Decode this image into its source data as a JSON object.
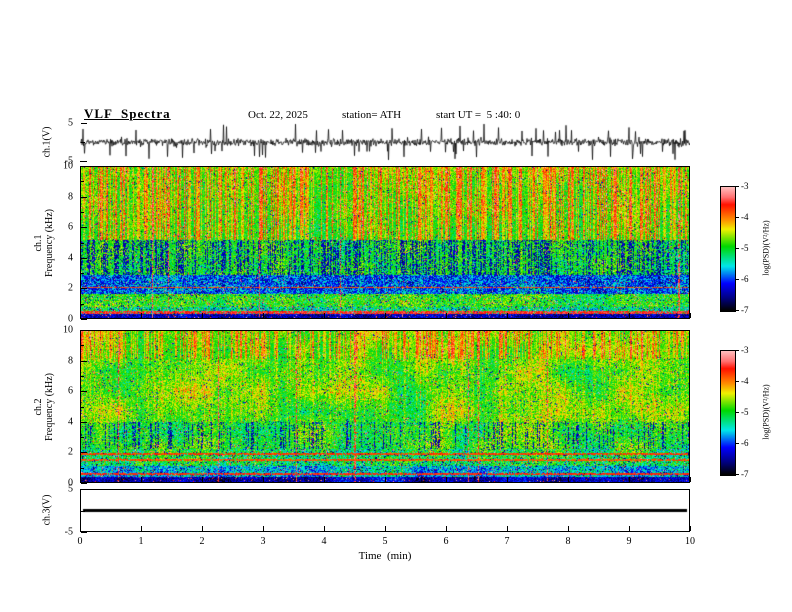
{
  "title": "VLF  Spectra",
  "header": {
    "date": "Oct. 22, 2025",
    "station": "station= ATH",
    "start_ut": "start UT =  5 :40: 0"
  },
  "axes": {
    "time": {
      "title": "Time  (min)",
      "min": 0,
      "max": 10,
      "ticks": [
        {
          "v": 0,
          "t": "0"
        },
        {
          "v": 1,
          "t": "1"
        },
        {
          "v": 2,
          "t": "2"
        },
        {
          "v": 3,
          "t": "3"
        },
        {
          "v": 4,
          "t": "4"
        },
        {
          "v": 5,
          "t": "5"
        },
        {
          "v": 6,
          "t": "6"
        },
        {
          "v": 7,
          "t": "7"
        },
        {
          "v": 8,
          "t": "8"
        },
        {
          "v": 9,
          "t": "9"
        },
        {
          "v": 10,
          "t": "10"
        }
      ]
    },
    "ch1_voltage": {
      "label_lines": [
        "ch.1(V)"
      ],
      "min": -5,
      "max": 5,
      "ticks": [
        {
          "v": 5,
          "t": "5"
        },
        {
          "v": -5,
          "t": "-5"
        }
      ]
    },
    "ch1_freq": {
      "label_lines": [
        "ch.1",
        "Frequency  (kHz)"
      ],
      "min": 0,
      "max": 10,
      "ticks": [
        {
          "v": 10,
          "t": "10"
        },
        {
          "v": 8,
          "t": "8"
        },
        {
          "v": 6,
          "t": "6"
        },
        {
          "v": 4,
          "t": "4"
        },
        {
          "v": 2,
          "t": "2"
        },
        {
          "v": 0,
          "t": "0"
        }
      ],
      "minor": [
        1,
        3,
        5,
        7,
        9
      ]
    },
    "ch2_freq": {
      "label_lines": [
        "ch.2",
        "Frequency  (kHz)"
      ],
      "min": 0,
      "max": 10,
      "ticks": [
        {
          "v": 10,
          "t": "10"
        },
        {
          "v": 8,
          "t": "8"
        },
        {
          "v": 6,
          "t": "6"
        },
        {
          "v": 4,
          "t": "4"
        },
        {
          "v": 2,
          "t": "2"
        },
        {
          "v": 0,
          "t": "0"
        }
      ],
      "minor": [
        1,
        3,
        5,
        7,
        9
      ]
    },
    "ch3_voltage": {
      "label_lines": [
        "ch.3(V)"
      ],
      "min": -5,
      "max": 5,
      "ticks": [
        {
          "v": 5,
          "t": "5"
        },
        {
          "v": -5,
          "t": "-5"
        }
      ]
    }
  },
  "colorbar": {
    "label": "log(PSD)(V²/Hz)",
    "ticks": [
      "-3",
      "-4",
      "-5",
      "-6",
      "-7"
    ],
    "zlim": [
      -7,
      -3
    ],
    "stops": [
      [
        0.0,
        "#000000"
      ],
      [
        0.1,
        "#000080"
      ],
      [
        0.22,
        "#0000ff"
      ],
      [
        0.36,
        "#00e8e8"
      ],
      [
        0.52,
        "#00d800"
      ],
      [
        0.66,
        "#f0f000"
      ],
      [
        0.74,
        "#ff8c00"
      ],
      [
        0.86,
        "#ff1000"
      ],
      [
        0.92,
        "#ff7070"
      ],
      [
        1.0,
        "#ffbcbc"
      ]
    ]
  },
  "chart_data": [
    {
      "type": "line",
      "name": "ch1_waveform",
      "ylabel": "ch.1(V)",
      "ylim": [
        -5,
        5
      ],
      "xlim": [
        0,
        10
      ],
      "description": "Dense broadband noise trace centered on 0 V, core amplitude about ±1.5 V, with frequent impulsive spikes reaching the ±5 V axis limits over the whole 10 minutes",
      "gen": {
        "seed": 1337,
        "sigma": 1.8,
        "spike_prob": 0.05,
        "spike_min": 2.5,
        "spike_max": 5.0
      }
    },
    {
      "type": "heatmap",
      "name": "ch1_spectrogram",
      "ylabel": "ch.1 Frequency (kHz)",
      "xlim": [
        0,
        10
      ],
      "ylim": [
        0,
        10
      ],
      "zlabel": "log(PSD)(V²/Hz)",
      "zlim": [
        -7,
        -3
      ],
      "features": [
        "dense red impulsive vertical streaks above ~5 kHz over a green background",
        "green band between ~3 and 5 kHz broken by many dark-blue/black vertical dropouts",
        "quiet dark-blue/cyan band between ~1.6 and 2.9 kHz",
        "green-yellow band ~0.8-1.6 kHz with red speckles",
        "strong red/orange horizontal line near 0.4 kHz",
        "nearly black bottom row at 0 kHz"
      ],
      "gen": {
        "seed": 20251022,
        "streak_prob": 0.5,
        "dark_streak_prob": 0.45,
        "full_streak_prob": 0.015,
        "patch_amp": 0.06,
        "bands": [
          {
            "f": [
              5.2,
              10.01
            ],
            "base": 0.52,
            "noise": 0.08,
            "tilt": 0.06,
            "streak_red": 0.42,
            "red_speckle": 0.05,
            "dark_speckle": 0.02
          },
          {
            "f": [
              2.9,
              5.2
            ],
            "base": 0.5,
            "noise": 0.1,
            "streak_red": 0.06,
            "streak_dark": 1,
            "dark_speckle": 0.1,
            "red_speckle": 0.02
          },
          {
            "f": [
              1.6,
              2.9
            ],
            "base": 0.3,
            "noise": 0.13,
            "dark_speckle": 0.22,
            "red_speckle": 0.02
          },
          {
            "f": [
              0.75,
              1.6
            ],
            "base": 0.52,
            "noise": 0.12,
            "dark_speckle": 0.06,
            "red_speckle": 0.05
          },
          {
            "f": [
              0.3,
              0.75
            ],
            "base": 0.44,
            "noise": 0.14,
            "dark_speckle": 0.08,
            "red_speckle": 0.06
          },
          {
            "f": [
              0.0,
              0.3
            ],
            "base": 0.15,
            "noise": 0.1,
            "red_speckle": 0.04
          }
        ],
        "hlines": [
          {
            "f": 0.38,
            "w": 0.1,
            "v": 0.88
          },
          {
            "f": 2.05,
            "w": 0.06,
            "v": 0.8
          }
        ]
      }
    },
    {
      "type": "heatmap",
      "name": "ch2_spectrogram",
      "ylabel": "ch.2 Frequency (kHz)",
      "xlim": [
        0,
        10
      ],
      "ylim": [
        0,
        10
      ],
      "zlabel": "log(PSD)(V²/Hz)",
      "zlim": [
        -7,
        -3
      ],
      "features": [
        "red impulsive vertical streaks above ~8 kHz",
        "broad green/yellow patchy background 2-8 kHz with thin red vertical streaks",
        "red horizontal interference lines near 1.5 and 1.9 kHz",
        "cyan/blue band below ~1 kHz with red line near 0.55 kHz",
        "nearly black bottom row at 0 kHz"
      ],
      "gen": {
        "seed": 54040,
        "streak_prob": 0.4,
        "dark_streak_prob": 0.18,
        "full_streak_prob": 0.02,
        "patch_amp": 0.1,
        "bands": [
          {
            "f": [
              8.2,
              10.01
            ],
            "base": 0.54,
            "noise": 0.08,
            "tilt": 0.04,
            "streak_red": 0.38,
            "red_speckle": 0.04,
            "dark_speckle": 0.02
          },
          {
            "f": [
              4.0,
              8.2
            ],
            "base": 0.55,
            "noise": 0.1,
            "streak_red": 0.12,
            "red_speckle": 0.03,
            "dark_speckle": 0.03
          },
          {
            "f": [
              2.2,
              4.0
            ],
            "base": 0.52,
            "noise": 0.11,
            "streak_red": 0.05,
            "streak_dark": 1,
            "red_speckle": 0.03,
            "dark_speckle": 0.06
          },
          {
            "f": [
              1.1,
              2.2
            ],
            "base": 0.48,
            "noise": 0.13,
            "red_speckle": 0.05,
            "dark_speckle": 0.09
          },
          {
            "f": [
              0.35,
              1.1
            ],
            "base": 0.36,
            "noise": 0.12,
            "red_speckle": 0.04,
            "dark_speckle": 0.12
          },
          {
            "f": [
              0.0,
              0.35
            ],
            "base": 0.15,
            "noise": 0.1,
            "red_speckle": 0.03
          }
        ],
        "hlines": [
          {
            "f": 1.9,
            "w": 0.07,
            "v": 0.82
          },
          {
            "f": 1.5,
            "w": 0.07,
            "v": 0.8
          },
          {
            "f": 0.55,
            "w": 0.08,
            "v": 0.85
          }
        ]
      }
    },
    {
      "type": "line",
      "name": "ch3_waveform",
      "ylabel": "ch.3(V)",
      "ylim": [
        -5,
        5
      ],
      "xlim": [
        0,
        10
      ],
      "description": "Constant flat line at 0 V across the entire record",
      "gen": {
        "value": 0,
        "thickness": 3
      }
    }
  ]
}
